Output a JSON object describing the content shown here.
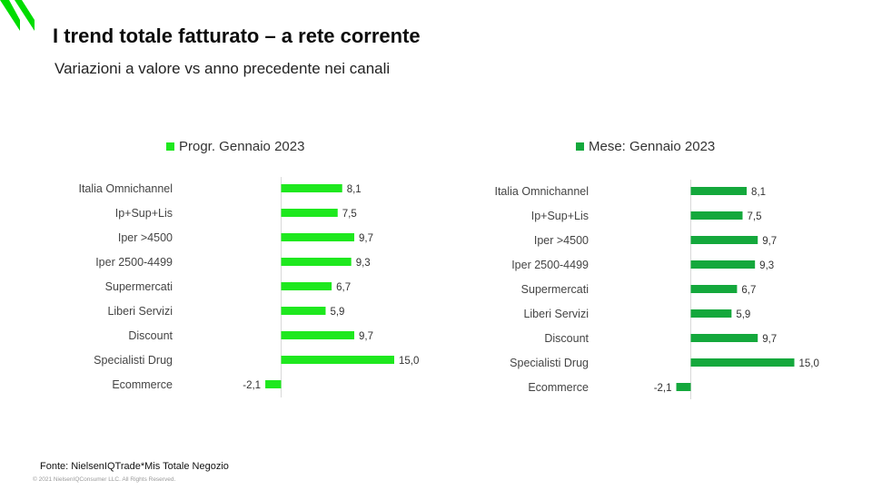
{
  "header": {
    "title": "I trend totale fatturato – a rete corrente",
    "subtitle": "Variazioni a valore vs anno precedente nei canali"
  },
  "footer": {
    "source": "Fonte: NielsenIQTrade*Mis Totale Negozio",
    "copyright": "© 2021 NielsenIQConsumer LLC. All Rights Reserved."
  },
  "logo": {
    "icon": "nielseniq-slash-logo-icon",
    "color": "#00dc00"
  },
  "chart_data": [
    {
      "type": "bar",
      "orientation": "horizontal",
      "legend": "Progr. Gennaio 2023",
      "legend_position": "top",
      "color": "#1ee81e",
      "categories": [
        "Italia Omnichannel",
        "Ip+Sup+Lis",
        "Iper >4500",
        "Iper 2500-4499",
        "Supermercati",
        "Liberi Servizi",
        "Discount",
        "Specialisti Drug",
        "Ecommerce"
      ],
      "values": [
        8.1,
        7.5,
        9.7,
        9.3,
        6.7,
        5.9,
        9.7,
        15.0,
        -2.1
      ],
      "value_labels": [
        "8,1",
        "7,5",
        "9,7",
        "9,3",
        "6,7",
        "5,9",
        "9,7",
        "15,0",
        "-2,1"
      ],
      "grid": false
    },
    {
      "type": "bar",
      "orientation": "horizontal",
      "legend": "Mese: Gennaio 2023",
      "legend_position": "top",
      "color": "#14a83c",
      "categories": [
        "Italia Omnichannel",
        "Ip+Sup+Lis",
        "Iper >4500",
        "Iper 2500-4499",
        "Supermercati",
        "Liberi Servizi",
        "Discount",
        "Specialisti Drug",
        "Ecommerce"
      ],
      "values": [
        8.1,
        7.5,
        9.7,
        9.3,
        6.7,
        5.9,
        9.7,
        15.0,
        -2.1
      ],
      "value_labels": [
        "8,1",
        "7,5",
        "9,7",
        "9,3",
        "6,7",
        "5,9",
        "9,7",
        "15,0",
        "-2,1"
      ],
      "grid": false
    }
  ]
}
